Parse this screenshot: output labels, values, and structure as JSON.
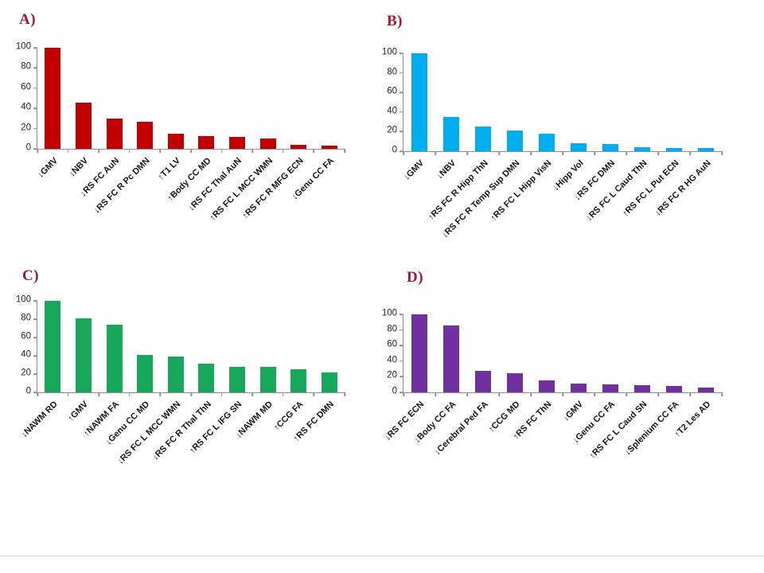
{
  "colors": {
    "panel_label": "#9E1B32",
    "axis": "#8E8E8E",
    "background": "#FFFFFF"
  },
  "chart_data": [
    {
      "id": "A",
      "type": "bar",
      "panel_label": "A)",
      "bar_color": "#C00000",
      "categories": [
        "↓GMV",
        "↓NBV",
        "↓RS FC AuN",
        "↓RS FC R Pc DMN",
        "↑T1 LV",
        "↑Body CC MD",
        "↓RS FC Thal AuN",
        "↑RS FC L MCC WMN",
        "↑RS FC R MFG ECN",
        "↓Genu CC FA"
      ],
      "values": [
        100,
        46,
        30,
        27,
        15,
        13,
        12,
        10,
        4,
        3
      ],
      "ylim": [
        0,
        100
      ],
      "yticks": [
        0,
        20,
        40,
        60,
        80,
        100
      ],
      "grid": false,
      "legend": "none",
      "xlabel_rotation_deg": 45
    },
    {
      "id": "B",
      "type": "bar",
      "panel_label": "B)",
      "bar_color": "#00AEEF",
      "categories": [
        "↓GMV",
        "↓NBV",
        "↑RS FC R Hipp ThN",
        "↓RS FC R Temp Sup DMN",
        "↑RS FC L Hipp VisN",
        "↓Hipp Vol",
        "↓RS FC DMN",
        "↓RS FC L Caud ThN",
        "↑RS FC L Put ECN",
        "↓RS FC R HG AuN"
      ],
      "values": [
        100,
        35,
        25,
        21,
        18,
        8,
        7,
        4,
        3.5,
        3
      ],
      "ylim": [
        0,
        100
      ],
      "yticks": [
        0,
        20,
        40,
        60,
        80,
        100
      ],
      "grid": false,
      "legend": "none",
      "xlabel_rotation_deg": 45
    },
    {
      "id": "C",
      "type": "bar",
      "panel_label": "C)",
      "bar_color": "#17A85B",
      "categories": [
        "↓NAWM RD",
        "↑GMV",
        "↑NAWM FA",
        "↓Genu CC MD",
        "↓RS FC L MCC WMN",
        "↓RS FC R Thal ThN",
        "↑RS FC L IFG SN",
        "↓NAWM MD",
        "↑CCG FA",
        "↑RS FC DMN"
      ],
      "values": [
        100,
        81,
        74,
        41,
        39,
        31,
        28,
        28,
        25,
        22
      ],
      "ylim": [
        0,
        100
      ],
      "yticks": [
        0,
        20,
        40,
        60,
        80,
        100
      ],
      "grid": false,
      "legend": "none",
      "xlabel_rotation_deg": 45
    },
    {
      "id": "D",
      "type": "bar",
      "panel_label": "D)",
      "bar_color": "#7030A0",
      "categories": [
        "↓RS FC ECN",
        "↓Body CC FA",
        "↓Cerebral Ped FA",
        "↑CCG MD",
        "↑RS FC ThN",
        "↓GMV",
        "↓Genu CC FA",
        "↑RS FC L Caud SN",
        "↓Splenium CC FA",
        "↑T2 Les AD"
      ],
      "values": [
        100,
        86,
        28,
        24,
        15,
        11,
        10,
        9,
        8,
        6
      ],
      "ylim": [
        0,
        100
      ],
      "yticks": [
        0,
        20,
        40,
        60,
        80,
        100
      ],
      "grid": false,
      "legend": "none",
      "xlabel_rotation_deg": 45
    }
  ]
}
